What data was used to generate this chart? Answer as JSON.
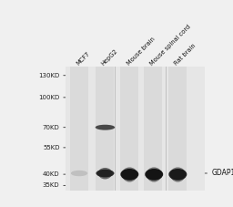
{
  "bg_color": "#f0f0f0",
  "gel_bg": "#e8e8e8",
  "white": "#ffffff",
  "sample_labels": [
    "MCF7",
    "HepG2",
    "Mouse brain",
    "Mouse spinal cord",
    "Rat brain"
  ],
  "marker_labels": [
    "130KD",
    "100KD",
    "70KD",
    "55KD",
    "40KD",
    "35KD"
  ],
  "marker_kd": [
    130,
    100,
    70,
    55,
    40,
    35
  ],
  "annotation": "GDAP1",
  "band_dark": "#1c1c1c",
  "band_mid": "#505050",
  "band_light": "#aaaaaa",
  "separator_color": "#bbbbbb",
  "tick_color": "#444444",
  "label_color": "#222222"
}
